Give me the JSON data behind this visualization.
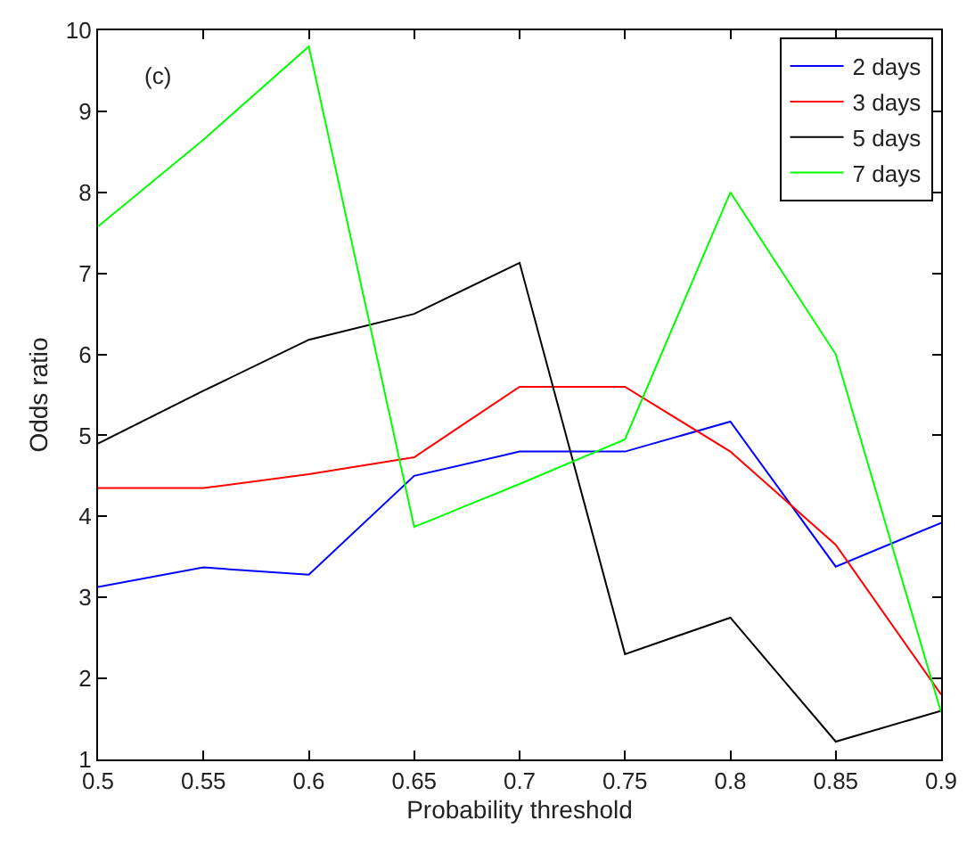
{
  "chart_data": {
    "type": "line",
    "xlabel": "Probability threshold",
    "ylabel": "Odds ratio",
    "annotations": [
      "(c)"
    ],
    "x": [
      0.5,
      0.55,
      0.6,
      0.65,
      0.7,
      0.75,
      0.8,
      0.85,
      0.9
    ],
    "series": [
      {
        "name": "2 days",
        "color": "#0000ff",
        "values": [
          3.13,
          3.37,
          3.28,
          4.5,
          4.8,
          4.8,
          5.17,
          3.38,
          3.92
        ]
      },
      {
        "name": "3 days",
        "color": "#ff0000",
        "values": [
          4.35,
          4.35,
          4.52,
          4.73,
          5.6,
          5.6,
          4.8,
          3.65,
          1.8
        ]
      },
      {
        "name": "5 days",
        "color": "#000000",
        "values": [
          4.9,
          5.55,
          6.18,
          6.5,
          7.13,
          2.3,
          2.75,
          1.22,
          1.6
        ]
      },
      {
        "name": "7 days",
        "color": "#00ff00",
        "values": [
          7.58,
          8.65,
          9.8,
          3.87,
          4.4,
          4.95,
          8.0,
          6.0,
          1.58
        ]
      }
    ],
    "xlim": [
      0.5,
      0.9
    ],
    "xticks": [
      0.5,
      0.55,
      0.6,
      0.65,
      0.7,
      0.75,
      0.8,
      0.85,
      0.9
    ],
    "ylim": [
      1,
      10
    ],
    "yticks": [
      1,
      2,
      3,
      4,
      5,
      6,
      7,
      8,
      9,
      10
    ],
    "legend": "top right",
    "grid": false,
    "marker": "none",
    "line_style": "solid"
  }
}
